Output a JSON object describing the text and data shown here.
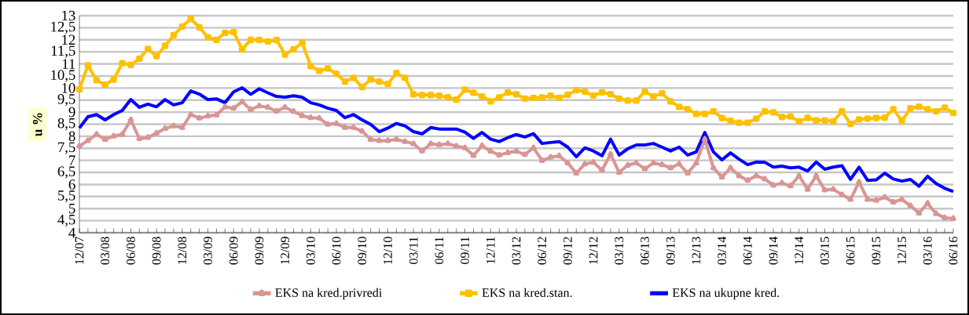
{
  "chart_data": {
    "type": "line",
    "ylabel": "u %",
    "categories": [
      "12/07",
      null,
      null,
      "03/08",
      null,
      null,
      "06/08",
      null,
      null,
      "09/08",
      null,
      null,
      "12/08",
      null,
      null,
      "03/09",
      null,
      null,
      "06/09",
      null,
      null,
      "09/09",
      null,
      null,
      "12/09",
      null,
      null,
      "03/10",
      null,
      null,
      "06/10",
      null,
      null,
      "09/10",
      null,
      null,
      "12/10",
      null,
      null,
      "03/11",
      null,
      null,
      "06/11",
      null,
      null,
      "09/11",
      null,
      null,
      "12/11",
      null,
      null,
      "03/12",
      null,
      null,
      "06/12",
      null,
      null,
      "09/12",
      null,
      null,
      "12/12",
      null,
      null,
      "03/13",
      null,
      null,
      "06/13",
      null,
      null,
      "09/13",
      null,
      null,
      "12/13",
      null,
      null,
      "03/14",
      null,
      null,
      "06/14",
      null,
      null,
      "09/14",
      null,
      null,
      "12/14",
      null,
      null,
      "03/15",
      null,
      null,
      "06/15",
      null,
      null,
      "09/15",
      null,
      null,
      "12/15",
      null,
      null,
      "03/16",
      null,
      null,
      "06/16"
    ],
    "series": [
      {
        "name": "EKS na kred.privredi",
        "color": "#d99594",
        "marker": "triangle",
        "values": [
          7.59,
          7.82,
          8.08,
          7.87,
          8.01,
          8.08,
          8.68,
          7.9,
          7.95,
          8.13,
          8.32,
          8.43,
          8.36,
          8.9,
          8.75,
          8.84,
          8.88,
          9.22,
          9.16,
          9.43,
          9.11,
          9.26,
          9.2,
          9.04,
          9.2,
          9.03,
          8.85,
          8.77,
          8.75,
          8.49,
          8.53,
          8.36,
          8.36,
          8.21,
          7.87,
          7.82,
          7.82,
          7.87,
          7.78,
          7.69,
          7.39,
          7.69,
          7.65,
          7.69,
          7.59,
          7.52,
          7.2,
          7.61,
          7.38,
          7.22,
          7.32,
          7.38,
          7.24,
          7.52,
          6.99,
          7.13,
          7.19,
          6.89,
          6.47,
          6.85,
          6.92,
          6.59,
          7.26,
          6.5,
          6.8,
          6.89,
          6.65,
          6.89,
          6.82,
          6.69,
          6.85,
          6.47,
          6.89,
          7.88,
          6.69,
          6.3,
          6.69,
          6.36,
          6.17,
          6.36,
          6.23,
          5.97,
          6.06,
          5.94,
          6.36,
          5.8,
          6.36,
          5.77,
          5.8,
          5.58,
          5.38,
          6.1,
          5.38,
          5.34,
          5.47,
          5.27,
          5.38,
          5.12,
          4.81,
          5.22,
          4.79,
          4.62,
          4.59
        ]
      },
      {
        "name": "EKS na kred.stan.",
        "color": "#ffc000",
        "marker": "square",
        "values": [
          9.95,
          10.94,
          10.32,
          10.14,
          10.35,
          11.03,
          10.96,
          11.22,
          11.62,
          11.32,
          11.75,
          12.19,
          12.55,
          12.87,
          12.52,
          12.1,
          12.0,
          12.29,
          12.32,
          11.61,
          12.0,
          12.0,
          11.93,
          12.0,
          11.39,
          11.61,
          11.88,
          10.91,
          10.71,
          10.81,
          10.59,
          10.27,
          10.42,
          10.04,
          10.36,
          10.27,
          10.17,
          10.62,
          10.42,
          9.74,
          9.71,
          9.71,
          9.68,
          9.62,
          9.52,
          9.93,
          9.8,
          9.65,
          9.45,
          9.61,
          9.81,
          9.74,
          9.56,
          9.59,
          9.61,
          9.68,
          9.59,
          9.72,
          9.91,
          9.85,
          9.69,
          9.82,
          9.75,
          9.56,
          9.48,
          9.48,
          9.85,
          9.65,
          9.78,
          9.45,
          9.22,
          9.12,
          8.93,
          8.93,
          9.03,
          8.76,
          8.64,
          8.56,
          8.56,
          8.73,
          9.03,
          8.99,
          8.8,
          8.82,
          8.62,
          8.76,
          8.66,
          8.66,
          8.62,
          9.03,
          8.51,
          8.7,
          8.73,
          8.76,
          8.77,
          9.12,
          8.64,
          9.16,
          9.23,
          9.12,
          9.03,
          9.19,
          8.97
        ]
      },
      {
        "name": "EKS na ukupne kred.",
        "color": "#0000ff",
        "line_style": "solid",
        "values": [
          8.34,
          8.81,
          8.9,
          8.68,
          8.9,
          9.07,
          9.52,
          9.2,
          9.33,
          9.22,
          9.52,
          9.3,
          9.39,
          9.88,
          9.75,
          9.52,
          9.55,
          9.39,
          9.84,
          10.01,
          9.74,
          9.97,
          9.8,
          9.65,
          9.62,
          9.68,
          9.62,
          9.39,
          9.3,
          9.16,
          9.07,
          8.77,
          8.9,
          8.68,
          8.49,
          8.19,
          8.34,
          8.53,
          8.43,
          8.19,
          8.1,
          8.36,
          8.3,
          8.3,
          8.3,
          8.17,
          7.91,
          8.16,
          7.88,
          7.78,
          7.94,
          8.07,
          7.97,
          8.11,
          7.7,
          7.74,
          7.78,
          7.55,
          7.15,
          7.52,
          7.39,
          7.19,
          7.88,
          7.22,
          7.48,
          7.64,
          7.64,
          7.7,
          7.55,
          7.39,
          7.55,
          7.22,
          7.35,
          8.16,
          7.35,
          7.02,
          7.31,
          7.05,
          6.82,
          6.93,
          6.92,
          6.72,
          6.76,
          6.69,
          6.72,
          6.56,
          6.93,
          6.63,
          6.72,
          6.78,
          6.21,
          6.72,
          6.17,
          6.19,
          6.47,
          6.23,
          6.14,
          6.21,
          5.93,
          6.34,
          6.04,
          5.84,
          5.71
        ]
      }
    ],
    "ylim": [
      4,
      13
    ],
    "yticks": [
      4,
      {
        "value": 4.5,
        "label": "4,5"
      },
      5,
      {
        "value": 5.5,
        "label": "5,5"
      },
      6,
      {
        "value": 6.5,
        "label": "6,5"
      },
      7,
      {
        "value": 7.5,
        "label": "7,5"
      },
      8,
      {
        "value": 8.5,
        "label": "8,5"
      },
      9,
      {
        "value": 9.5,
        "label": "9,5"
      },
      10,
      {
        "value": 10.5,
        "label": "10,5"
      },
      11,
      {
        "value": 11.5,
        "label": "11,5"
      },
      12,
      {
        "value": 12.5,
        "label": "12,5"
      },
      13
    ],
    "grid": "y",
    "legend": "bottom"
  }
}
